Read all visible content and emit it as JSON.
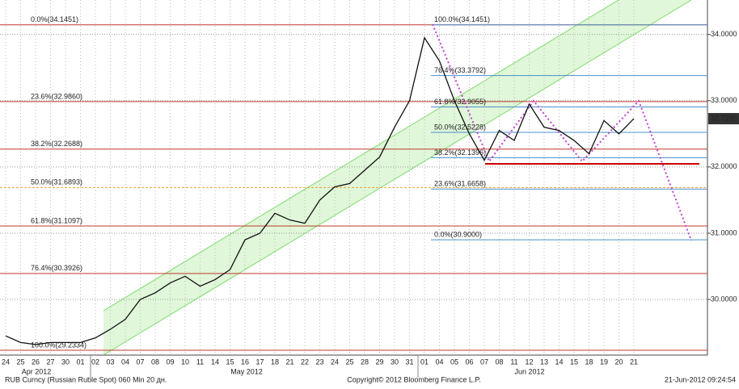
{
  "chart_data": {
    "type": "line",
    "categories": [
      "24",
      "25",
      "26",
      "27",
      "30",
      "01",
      "02",
      "03",
      "04",
      "07",
      "08",
      "09",
      "10",
      "11",
      "14",
      "15",
      "16",
      "17",
      "18",
      "21",
      "22",
      "23",
      "24",
      "25",
      "28",
      "29",
      "30",
      "31",
      "01",
      "04",
      "05",
      "06",
      "07",
      "08",
      "11",
      "12",
      "13",
      "14",
      "15",
      "18",
      "19",
      "20",
      "21"
    ],
    "months": [
      "Apr 2012",
      "May 2012",
      "Jun 2012"
    ],
    "series": [
      {
        "name": "RUB Curncy",
        "color": "#111111",
        "values": [
          29.45,
          29.35,
          29.32,
          29.35,
          29.35,
          29.35,
          29.42,
          29.55,
          29.7,
          30.0,
          30.1,
          30.25,
          30.35,
          30.2,
          30.3,
          30.45,
          30.9,
          31.0,
          31.3,
          31.2,
          31.15,
          31.5,
          31.7,
          31.75,
          31.95,
          32.15,
          32.6,
          33.0,
          33.95,
          33.6,
          33.0,
          32.5,
          32.1,
          32.55,
          32.4,
          32.95,
          32.6,
          32.55,
          32.4,
          32.2,
          32.7,
          32.5,
          32.73
        ]
      }
    ],
    "ylim": [
      29.16,
      34.52
    ],
    "yticks": [
      {
        "value": 30,
        "label": "30.0000"
      },
      {
        "value": 31,
        "label": "31.0000"
      },
      {
        "value": 32,
        "label": "32.0000"
      },
      {
        "value": 33,
        "label": "33.0000"
      },
      {
        "value": 34,
        "label": "34.0000"
      }
    ],
    "last_price": {
      "value": 32.729,
      "label": "32.7290"
    },
    "fib_left": [
      {
        "label": "0.0%(34.1451)",
        "value": 34.1451
      },
      {
        "label": "23.6%(32.9860)",
        "value": 32.986
      },
      {
        "label": "38.2%(32.2688)",
        "value": 32.2688
      },
      {
        "label": "50.0%(31.6893)",
        "value": 31.6893
      },
      {
        "label": "61.8%(31.1097)",
        "value": 31.1097
      },
      {
        "label": "76.4%(30.3926)",
        "value": 30.3926
      },
      {
        "label": "100.0%(29.2334)",
        "value": 29.2334
      }
    ],
    "fib_right": [
      {
        "label": "100.0%(34.1451)",
        "value": 34.1451
      },
      {
        "label": "76.4%(33.3792)",
        "value": 33.3792
      },
      {
        "label": "61.8%(32.9055)",
        "value": 32.9055
      },
      {
        "label": "50.0%(32.5228)",
        "value": 32.5228
      },
      {
        "label": "38.2%(32.1396)",
        "value": 32.1396
      },
      {
        "label": "23.6%(31.6658)",
        "value": 31.6658
      },
      {
        "label": "0.0%(30.9000)",
        "value": 30.9
      }
    ],
    "footer_left": "RUB Curncy (Russian Ruble Spot) 060 Min 20 дн.",
    "footer_center": "Copyright© 2012 Bloomberg Finance L.P.",
    "footer_right": "21-Jun-2012 09:24:54"
  }
}
